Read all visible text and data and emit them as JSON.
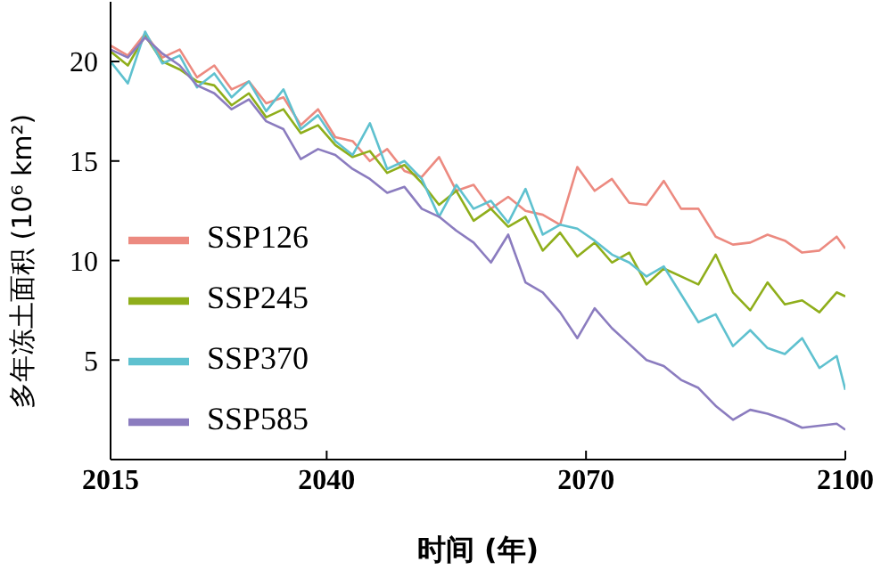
{
  "chart_data": {
    "type": "line",
    "xlabel": "时间 (年)",
    "ylabel": "多年冻土面积 (10⁶ km²)",
    "x": [
      2015,
      2017,
      2019,
      2021,
      2023,
      2025,
      2027,
      2029,
      2031,
      2033,
      2035,
      2037,
      2039,
      2041,
      2043,
      2045,
      2047,
      2049,
      2051,
      2053,
      2055,
      2057,
      2059,
      2061,
      2063,
      2065,
      2067,
      2069,
      2071,
      2073,
      2075,
      2077,
      2079,
      2081,
      2083,
      2085,
      2087,
      2089,
      2091,
      2093,
      2095,
      2097,
      2099,
      2100
    ],
    "series": [
      {
        "name": "SSP126",
        "color": "#ec8a80",
        "values": [
          20.8,
          20.3,
          21.4,
          20.2,
          20.6,
          19.2,
          19.8,
          18.6,
          19.0,
          17.9,
          18.2,
          16.8,
          17.6,
          16.2,
          16.0,
          15.0,
          15.6,
          14.5,
          14.2,
          15.2,
          13.5,
          13.8,
          12.6,
          13.2,
          12.5,
          12.3,
          11.8,
          14.7,
          13.5,
          14.1,
          12.9,
          12.8,
          14.0,
          12.6,
          12.6,
          11.2,
          10.8,
          10.9,
          11.3,
          11.0,
          10.4,
          10.5,
          11.2,
          10.6
        ]
      },
      {
        "name": "SSP245",
        "color": "#8fae1b",
        "values": [
          20.5,
          19.8,
          21.3,
          20.0,
          19.6,
          19.0,
          18.8,
          17.8,
          18.4,
          17.2,
          17.6,
          16.4,
          16.8,
          15.8,
          15.2,
          15.5,
          14.4,
          14.8,
          13.9,
          12.8,
          13.5,
          12.0,
          12.6,
          11.7,
          12.2,
          10.5,
          11.4,
          10.2,
          10.9,
          9.9,
          10.4,
          8.8,
          9.6,
          9.2,
          8.8,
          10.3,
          8.4,
          7.5,
          8.9,
          7.8,
          8.0,
          7.4,
          8.4,
          8.2
        ]
      },
      {
        "name": "SSP370",
        "color": "#5fc1cf",
        "values": [
          20.0,
          18.9,
          21.5,
          19.9,
          20.3,
          18.7,
          19.4,
          18.2,
          19.0,
          17.5,
          18.6,
          16.6,
          17.3,
          16.0,
          15.3,
          16.9,
          14.6,
          15.0,
          14.1,
          12.2,
          13.8,
          12.6,
          13.0,
          11.9,
          13.6,
          11.3,
          11.8,
          11.6,
          11.0,
          10.3,
          9.9,
          9.2,
          9.7,
          8.3,
          6.9,
          7.3,
          5.7,
          6.5,
          5.6,
          5.3,
          6.1,
          4.6,
          5.2,
          3.5
        ]
      },
      {
        "name": "SSP585",
        "color": "#8b7cbf",
        "values": [
          20.6,
          20.2,
          21.2,
          20.4,
          19.8,
          18.8,
          18.4,
          17.6,
          18.1,
          17.0,
          16.6,
          15.1,
          15.6,
          15.3,
          14.6,
          14.1,
          13.4,
          13.7,
          12.6,
          12.2,
          11.5,
          10.9,
          9.9,
          11.3,
          8.9,
          8.4,
          7.4,
          6.1,
          7.6,
          6.6,
          5.8,
          5.0,
          4.7,
          4.0,
          3.6,
          2.7,
          2.0,
          2.5,
          2.3,
          2.0,
          1.6,
          1.7,
          1.8,
          1.5
        ]
      }
    ],
    "xlim": [
      2015,
      2100
    ],
    "xticks": [
      2015,
      2040,
      2070,
      2100
    ],
    "ylim": [
      0,
      23
    ],
    "yticks": [
      {
        "value": 0,
        "label": null
      },
      5,
      10,
      15,
      20
    ],
    "legend": "bottom left",
    "grid": false,
    "marker": "none",
    "line_style": "solid"
  }
}
